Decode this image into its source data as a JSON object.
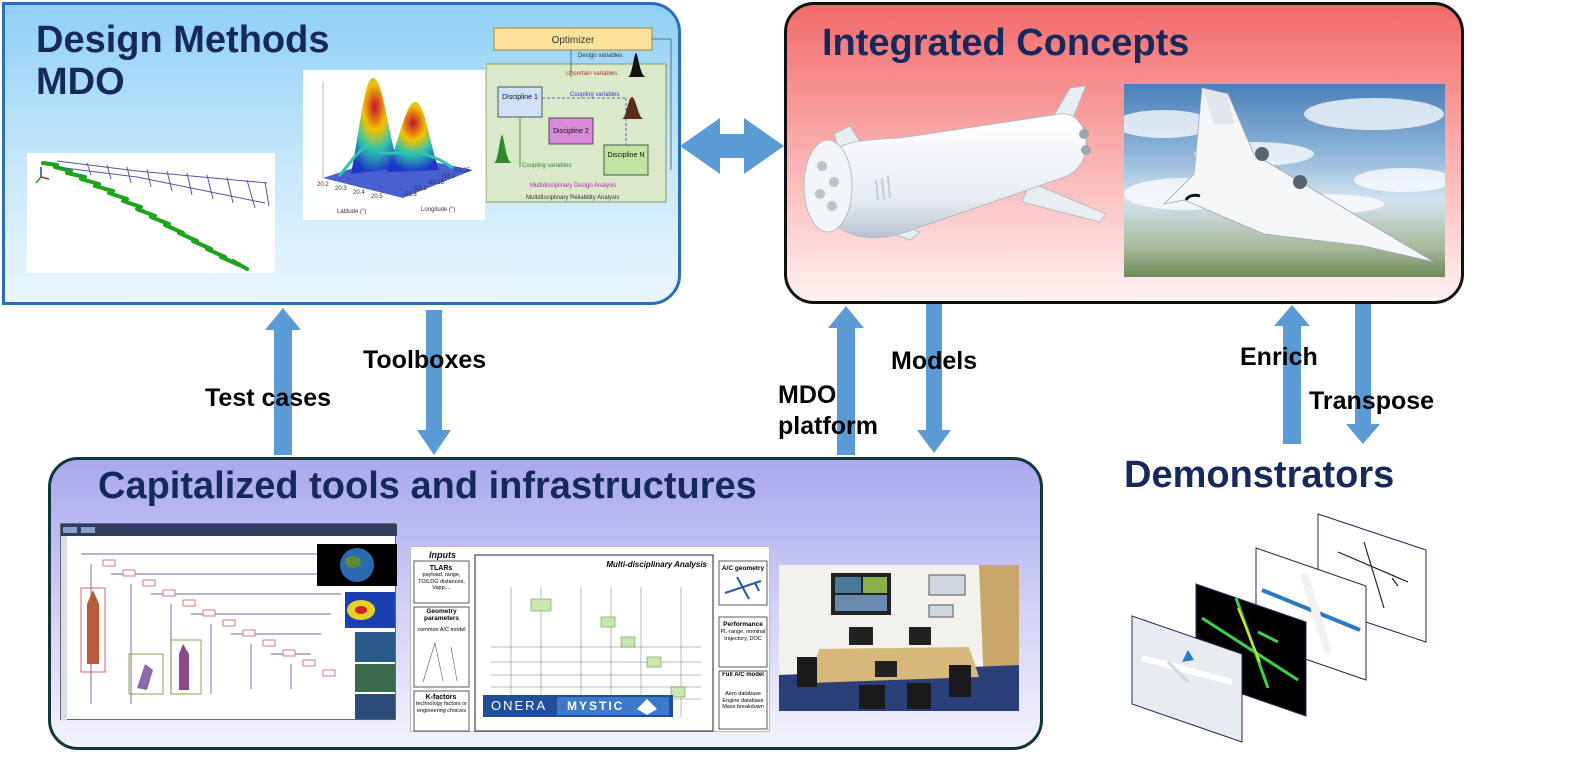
{
  "boxes": {
    "design_methods": {
      "title_line1": "Design Methods",
      "title_line2": "MDO"
    },
    "integrated_concepts": {
      "title": "Integrated Concepts"
    },
    "capitalized_tools": {
      "title": "Capitalized tools and infrastructures"
    },
    "demonstrators": {
      "title": "Demonstrators"
    }
  },
  "arrow_labels": {
    "test_cases": "Test cases",
    "toolboxes": "Toolboxes",
    "mdo_platform_line1": "MDO",
    "mdo_platform_line2": "platform",
    "models": "Models",
    "enrich": "Enrich",
    "transpose": "Transpose"
  },
  "reliability_diagram": {
    "optimizer": "Optimizer",
    "design_variables": "Design variables",
    "uncertain_variables": "Uncertain variables",
    "coupling_variables": "Coupling variables",
    "discipline_1": "Discipline 1",
    "discipline_2": "Discipline 2",
    "discipline_n": "Discipline N",
    "mda": "Multidisciplinary Design Analysis",
    "mra": "Multidisciplinary Reliability Analysis"
  },
  "surface_plot": {
    "x_ticks": [
      "20.2",
      "20.3",
      "20.4",
      "20.5"
    ],
    "y_ticks": [
      "-53.3",
      "-53.2",
      "-53.15",
      "-53.1",
      "-53.05"
    ],
    "xlabel": "Latitude (°)",
    "ylabel": "Longitude (°)"
  },
  "mystic": {
    "inputs": "Inputs",
    "tlars": "TLARs",
    "tlars_text": "payload, range, TO/LDG distances, Vapp,...",
    "geometry": "Geometry parameters",
    "geometry_text": "common A/C model",
    "kfactors": "K-factors",
    "kfactors_text": "technology factors or engineering choices",
    "mda_title": "Multi-disciplinary Analysis",
    "ac_geometry": "A/C geometry",
    "performance": "Performance",
    "performance_text": "PL-range, nominal trajectory, DOC",
    "full_ac": "Full A/C model",
    "full_ac_text": "Aero database Engine database Mass breakdown",
    "logo_left": "ONERA",
    "logo_right": "MYSTIC"
  },
  "colors": {
    "design_border": "#2a6fb5",
    "integrated_border": "#111111",
    "capitalized_border": "#12373a",
    "title_text": "#16295c",
    "arrow": "#5b9bd5"
  }
}
